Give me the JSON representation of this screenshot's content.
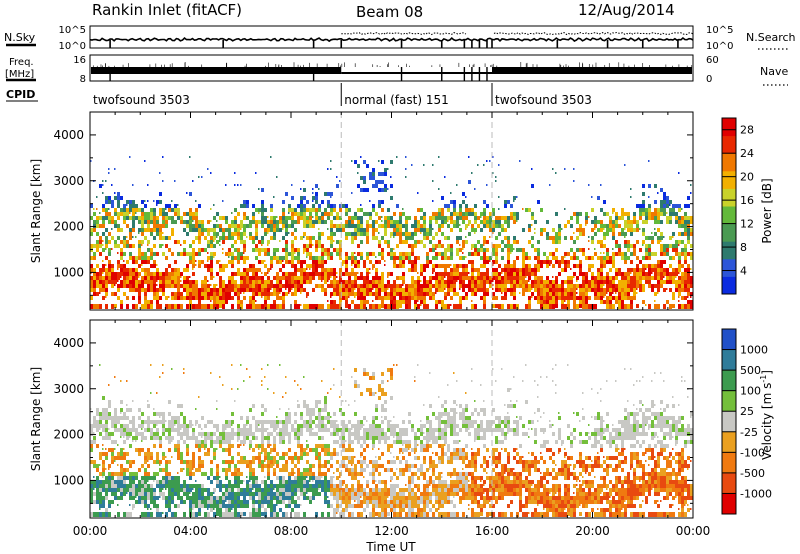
{
  "header": {
    "station": "Rankin Inlet (fitACF)",
    "beam": "Beam 08",
    "date": "12/Aug/2014"
  },
  "top_panels": {
    "nsky_label": "N.Sky",
    "nsky_ticks": [
      "10^5",
      "10^0"
    ],
    "nsearch_label": "N.Search",
    "nsearch_ticks": [
      "10^5",
      "10^0"
    ],
    "freq_label": "Freq.",
    "freq_unit": "[MHz]",
    "freq_ticks": [
      "16",
      "8"
    ],
    "nave_label": "Nave",
    "nave_ticks": [
      "60",
      "0"
    ],
    "cpid_label": "CPID",
    "cpid_segments": [
      {
        "label": "twofsound 3503",
        "start_hour": 0,
        "end_hour": 10
      },
      {
        "label": "normal (fast) 151",
        "start_hour": 10,
        "end_hour": 16
      },
      {
        "label": "twofsound 3503",
        "start_hour": 16,
        "end_hour": 24
      }
    ]
  },
  "colors": {
    "power": [
      "#0a2be0",
      "#2c55d8",
      "#2e7a6e",
      "#4a9a52",
      "#63b93a",
      "#c9d22a",
      "#f2b000",
      "#f07800",
      "#e82800",
      "#e00000"
    ],
    "velocity": [
      "#2050c8",
      "#2f7c9a",
      "#3c9b4f",
      "#74bf3b",
      "#c8c8c4",
      "#eaa020",
      "#f07a10",
      "#e84a10",
      "#e00000"
    ]
  },
  "chart_data": [
    {
      "type": "heatmap",
      "title": "Power",
      "xlabel": "",
      "ylabel": "Slant Range [km]",
      "xlim": [
        0,
        24
      ],
      "ylim": [
        180,
        4500
      ],
      "y_ticks": [
        "1000",
        "2000",
        "3000",
        "4000"
      ],
      "y_tick_values": [
        1000,
        2000,
        3000,
        4000
      ],
      "colorbar_label": "Power [dB]",
      "colorbar_ticks": [
        "4",
        "8",
        "12",
        "16",
        "20",
        "24",
        "28"
      ],
      "colorbar_tick_values": [
        4,
        8,
        12,
        16,
        20,
        24,
        28
      ],
      "colorbar_range": [
        0,
        30
      ],
      "mode_change_hours": [
        10,
        16
      ]
    },
    {
      "type": "heatmap",
      "title": "Velocity",
      "xlabel": "Time UT",
      "ylabel": "Slant Range [km]",
      "xlim": [
        0,
        24
      ],
      "ylim": [
        180,
        4500
      ],
      "x_ticks": [
        "00:00",
        "04:00",
        "08:00",
        "12:00",
        "16:00",
        "20:00",
        "00:00"
      ],
      "x_tick_hours": [
        0,
        4,
        8,
        12,
        16,
        20,
        24
      ],
      "y_ticks": [
        "1000",
        "2000",
        "3000",
        "4000"
      ],
      "y_tick_values": [
        1000,
        2000,
        3000,
        4000
      ],
      "colorbar_label": "Velocity [m s",
      "colorbar_label_sup": "-1",
      "colorbar_label_end": "]",
      "colorbar_ticks": [
        "1000",
        "500",
        "100",
        "25",
        "-25",
        "-100",
        "-500",
        "-1000"
      ],
      "mode_change_hours": [
        10,
        16
      ]
    }
  ]
}
